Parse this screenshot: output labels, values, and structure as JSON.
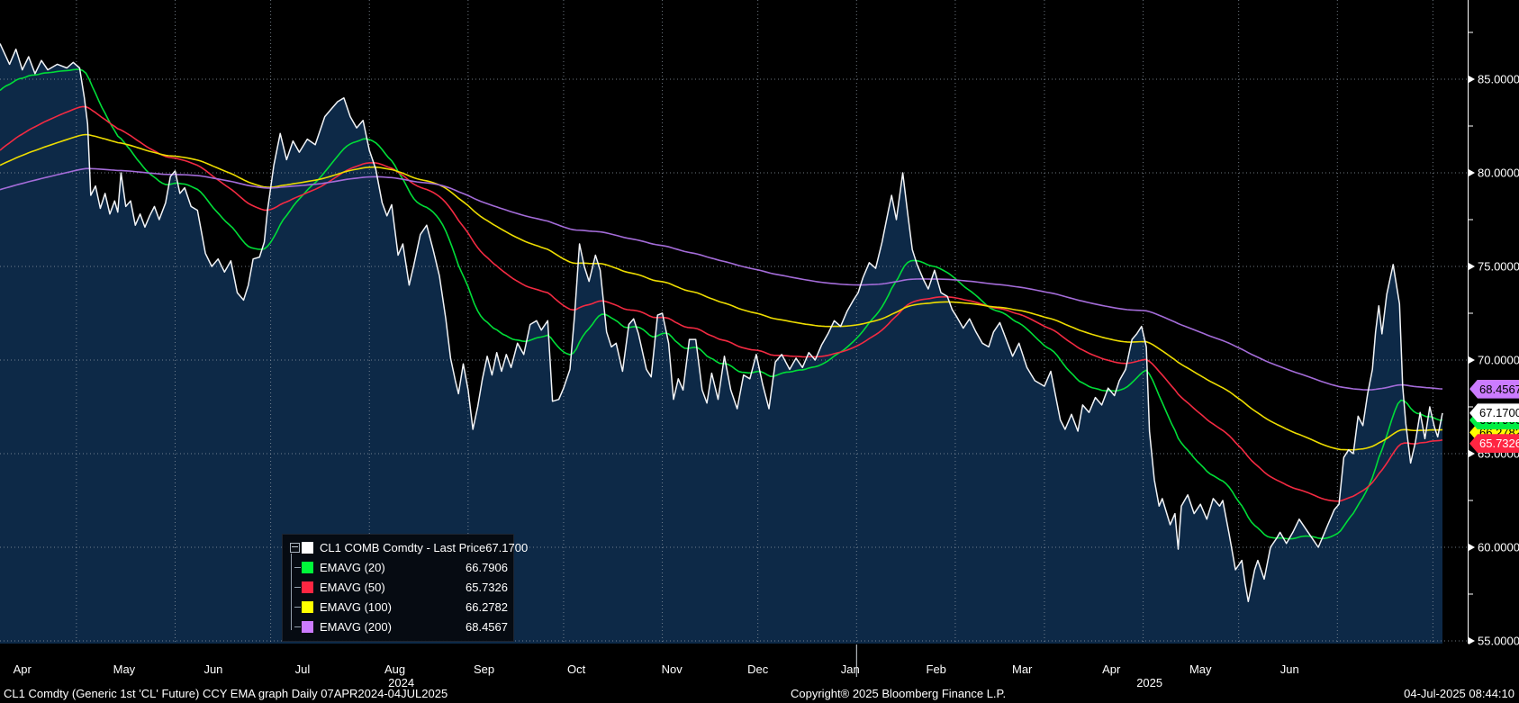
{
  "chart_data": {
    "type": "line",
    "title": "CL1 Comdty (Generic 1st 'CL' Future) CCY EMA graph Daily 07APR2024-04JUL2025",
    "x_start_label": "07APR2024",
    "x_end_label": "04JUL2025",
    "x_range_days": 453,
    "ylim": [
      54.85,
      89.2
    ],
    "y_ticks_major": [
      85,
      80,
      75,
      70,
      65,
      60,
      55
    ],
    "y_ticks_minor": [
      87.5,
      82.5,
      77.5,
      72.5,
      67.5,
      62.5,
      57.5
    ],
    "grid": true,
    "legend_position": "bottom-left",
    "month_boundaries_days": [
      24,
      55,
      85,
      116,
      147,
      177,
      208,
      238,
      269,
      300,
      328,
      359,
      389,
      420,
      450
    ],
    "months": [
      {
        "label": "Apr",
        "day": 7
      },
      {
        "label": "May",
        "day": 39
      },
      {
        "label": "Jun",
        "day": 67
      },
      {
        "label": "Jul",
        "day": 95
      },
      {
        "label": "Aug",
        "day": 124
      },
      {
        "label": "Sep",
        "day": 152
      },
      {
        "label": "Oct",
        "day": 181
      },
      {
        "label": "Nov",
        "day": 211
      },
      {
        "label": "Dec",
        "day": 238
      },
      {
        "label": "Jan",
        "day": 267
      },
      {
        "label": "Feb",
        "day": 294
      },
      {
        "label": "Mar",
        "day": 321
      },
      {
        "label": "Apr",
        "day": 349
      },
      {
        "label": "May",
        "day": 377
      },
      {
        "label": "Jun",
        "day": 405
      }
    ],
    "years": [
      {
        "label": "2024",
        "day": 126
      },
      {
        "label": "2025",
        "day": 361
      }
    ],
    "year_boundary_day": 269,
    "price_series": {
      "name": "CL1 COMB Comdty - Last Price",
      "color": "#f2f4f7",
      "fill": "#0d2947",
      "last_value": 67.17,
      "points": [
        [
          0,
          86.9
        ],
        [
          3,
          85.8
        ],
        [
          5,
          86.6
        ],
        [
          7,
          85.5
        ],
        [
          9,
          86.2
        ],
        [
          11,
          85.3
        ],
        [
          13,
          86.0
        ],
        [
          15,
          85.5
        ],
        [
          18,
          85.8
        ],
        [
          21,
          85.6
        ],
        [
          23,
          85.9
        ],
        [
          25,
          85.6
        ],
        [
          26.5,
          84.0
        ],
        [
          27.5,
          82.6
        ],
        [
          28.5,
          78.8
        ],
        [
          30,
          79.3
        ],
        [
          31.5,
          78.1
        ],
        [
          33,
          78.9
        ],
        [
          34.5,
          77.8
        ],
        [
          36,
          78.5
        ],
        [
          37,
          77.9
        ],
        [
          38,
          80.0
        ],
        [
          39.5,
          78.2
        ],
        [
          41,
          78.5
        ],
        [
          42.5,
          77.2
        ],
        [
          44,
          77.8
        ],
        [
          45.5,
          77.1
        ],
        [
          47,
          77.7
        ],
        [
          48.5,
          78.2
        ],
        [
          50,
          77.5
        ],
        [
          52,
          78.4
        ],
        [
          53.5,
          79.8
        ],
        [
          55,
          80.1
        ],
        [
          56.5,
          78.9
        ],
        [
          58,
          79.2
        ],
        [
          60,
          78.2
        ],
        [
          62,
          78.0
        ],
        [
          64.5,
          75.7
        ],
        [
          66.5,
          75.0
        ],
        [
          68.5,
          75.4
        ],
        [
          70.5,
          74.7
        ],
        [
          72.5,
          75.3
        ],
        [
          74.5,
          73.6
        ],
        [
          76.5,
          73.2
        ],
        [
          78,
          74.0
        ],
        [
          79.5,
          75.4
        ],
        [
          81.5,
          75.5
        ],
        [
          83,
          76.3
        ],
        [
          84,
          78.0
        ],
        [
          86,
          80.4
        ],
        [
          88,
          82.1
        ],
        [
          90,
          80.7
        ],
        [
          92,
          81.7
        ],
        [
          94,
          81.1
        ],
        [
          96.5,
          81.8
        ],
        [
          99,
          81.5
        ],
        [
          102,
          83.0
        ],
        [
          104,
          83.4
        ],
        [
          106,
          83.8
        ],
        [
          108,
          84.0
        ],
        [
          110,
          83.0
        ],
        [
          112,
          82.4
        ],
        [
          114,
          82.8
        ],
        [
          116,
          81.2
        ],
        [
          118,
          80.2
        ],
        [
          120,
          78.4
        ],
        [
          121.5,
          77.7
        ],
        [
          123,
          78.3
        ],
        [
          125,
          75.6
        ],
        [
          126.5,
          76.2
        ],
        [
          128.5,
          74.0
        ],
        [
          130,
          75.1
        ],
        [
          132,
          76.7
        ],
        [
          134,
          77.2
        ],
        [
          136,
          75.9
        ],
        [
          138,
          74.5
        ],
        [
          140,
          72.2
        ],
        [
          141.5,
          70.1
        ],
        [
          143,
          68.9
        ],
        [
          144,
          68.2
        ],
        [
          145.5,
          69.8
        ],
        [
          147,
          68.4
        ],
        [
          148.5,
          66.3
        ],
        [
          150,
          67.5
        ],
        [
          151.5,
          69.0
        ],
        [
          153,
          70.2
        ],
        [
          154.5,
          69.2
        ],
        [
          156,
          70.4
        ],
        [
          157.5,
          69.4
        ],
        [
          159,
          70.3
        ],
        [
          160.5,
          69.6
        ],
        [
          162.5,
          70.9
        ],
        [
          164.5,
          70.3
        ],
        [
          166.5,
          71.9
        ],
        [
          168.5,
          72.1
        ],
        [
          170,
          71.6
        ],
        [
          172,
          72.1
        ],
        [
          173.5,
          67.8
        ],
        [
          175.5,
          67.9
        ],
        [
          177,
          68.5
        ],
        [
          179,
          69.5
        ],
        [
          180.5,
          72.5
        ],
        [
          182,
          76.2
        ],
        [
          183.5,
          75.0
        ],
        [
          185,
          74.2
        ],
        [
          187,
          75.6
        ],
        [
          188.5,
          74.8
        ],
        [
          190.5,
          71.5
        ],
        [
          192,
          70.7
        ],
        [
          193.5,
          70.9
        ],
        [
          195.5,
          69.4
        ],
        [
          197.5,
          71.9
        ],
        [
          199,
          72.2
        ],
        [
          200.5,
          71.4
        ],
        [
          203,
          69.5
        ],
        [
          204.5,
          69.1
        ],
        [
          206.5,
          72.4
        ],
        [
          208,
          72.5
        ],
        [
          210,
          70.9
        ],
        [
          211.5,
          67.9
        ],
        [
          213,
          69.0
        ],
        [
          214.5,
          68.4
        ],
        [
          216.5,
          71.1
        ],
        [
          218.5,
          71.1
        ],
        [
          220.5,
          68.4
        ],
        [
          222,
          67.7
        ],
        [
          223.5,
          69.3
        ],
        [
          225.5,
          67.9
        ],
        [
          227.5,
          70.2
        ],
        [
          229.5,
          68.4
        ],
        [
          231.5,
          67.4
        ],
        [
          233.5,
          69.2
        ],
        [
          235.5,
          69.0
        ],
        [
          237.5,
          70.3
        ],
        [
          239.5,
          68.7
        ],
        [
          241.5,
          67.4
        ],
        [
          243.5,
          69.9
        ],
        [
          245.5,
          70.3
        ],
        [
          248,
          69.5
        ],
        [
          250,
          70.1
        ],
        [
          252,
          69.6
        ],
        [
          254,
          70.4
        ],
        [
          256,
          70.0
        ],
        [
          258,
          70.8
        ],
        [
          260,
          71.4
        ],
        [
          262,
          72.1
        ],
        [
          264,
          71.8
        ],
        [
          266,
          72.6
        ],
        [
          268,
          73.2
        ],
        [
          269.5,
          73.6
        ],
        [
          271,
          74.4
        ],
        [
          273,
          75.2
        ],
        [
          275,
          74.9
        ],
        [
          277,
          76.3
        ],
        [
          279,
          78.0
        ],
        [
          280,
          78.8
        ],
        [
          281.5,
          77.5
        ],
        [
          283.5,
          80.0
        ],
        [
          285,
          77.9
        ],
        [
          286.5,
          75.9
        ],
        [
          288,
          75.1
        ],
        [
          290,
          74.3
        ],
        [
          291.5,
          73.8
        ],
        [
          293.5,
          74.8
        ],
        [
          295.5,
          73.6
        ],
        [
          297.5,
          73.4
        ],
        [
          299,
          72.7
        ],
        [
          300.5,
          72.3
        ],
        [
          302.5,
          71.7
        ],
        [
          304.5,
          72.2
        ],
        [
          306.5,
          71.5
        ],
        [
          308.5,
          70.9
        ],
        [
          310.5,
          70.7
        ],
        [
          312,
          71.5
        ],
        [
          314,
          72.0
        ],
        [
          316,
          71.1
        ],
        [
          318,
          70.2
        ],
        [
          320,
          70.9
        ],
        [
          322.5,
          69.6
        ],
        [
          325,
          68.9
        ],
        [
          328,
          68.6
        ],
        [
          330,
          69.4
        ],
        [
          333,
          66.8
        ],
        [
          334.5,
          66.3
        ],
        [
          336.5,
          67.1
        ],
        [
          338.5,
          66.2
        ],
        [
          340,
          67.6
        ],
        [
          342,
          67.2
        ],
        [
          344,
          68.0
        ],
        [
          346,
          67.6
        ],
        [
          348,
          68.5
        ],
        [
          350,
          68.1
        ],
        [
          351.5,
          68.9
        ],
        [
          353.5,
          69.5
        ],
        [
          355.5,
          71.1
        ],
        [
          357,
          71.4
        ],
        [
          358.5,
          71.8
        ],
        [
          360,
          70.7
        ],
        [
          361,
          66.2
        ],
        [
          362.5,
          63.6
        ],
        [
          364,
          62.2
        ],
        [
          365,
          62.6
        ],
        [
          367.5,
          61.2
        ],
        [
          369,
          61.8
        ],
        [
          370,
          59.9
        ],
        [
          371,
          62.2
        ],
        [
          373,
          62.8
        ],
        [
          375,
          61.8
        ],
        [
          377,
          62.3
        ],
        [
          379,
          61.5
        ],
        [
          381,
          62.6
        ],
        [
          383,
          62.2
        ],
        [
          384,
          62.5
        ],
        [
          386,
          60.7
        ],
        [
          388,
          58.8
        ],
        [
          390,
          59.3
        ],
        [
          391,
          58.1
        ],
        [
          392,
          57.1
        ],
        [
          394,
          58.8
        ],
        [
          395,
          59.3
        ],
        [
          397,
          58.3
        ],
        [
          399,
          60.0
        ],
        [
          401,
          60.5
        ],
        [
          402,
          60.8
        ],
        [
          404,
          60.2
        ],
        [
          406,
          60.8
        ],
        [
          408,
          61.5
        ],
        [
          410,
          61.0
        ],
        [
          412,
          60.5
        ],
        [
          414,
          60.0
        ],
        [
          416,
          60.8
        ],
        [
          417,
          61.2
        ],
        [
          419,
          62.0
        ],
        [
          420.5,
          62.3
        ],
        [
          422,
          64.8
        ],
        [
          423.5,
          65.2
        ],
        [
          425,
          65.0
        ],
        [
          426.5,
          67.0
        ],
        [
          428,
          66.5
        ],
        [
          429.5,
          68.2
        ],
        [
          431,
          69.5
        ],
        [
          432,
          71.5
        ],
        [
          433,
          72.9
        ],
        [
          434,
          71.4
        ],
        [
          435.5,
          73.5
        ],
        [
          437.5,
          75.1
        ],
        [
          439.5,
          73.0
        ],
        [
          440.5,
          68.6
        ],
        [
          441.5,
          66.6
        ],
        [
          443,
          64.5
        ],
        [
          444.5,
          65.6
        ],
        [
          446,
          67.2
        ],
        [
          447.5,
          65.8
        ],
        [
          449,
          67.5
        ],
        [
          450.5,
          66.4
        ],
        [
          451.5,
          65.9
        ],
        [
          453,
          67.17
        ]
      ]
    },
    "ema_series": [
      {
        "name": "EMAVG (20)",
        "period": 20,
        "color": "#00dd38",
        "start": 84.4,
        "end": 66.7906
      },
      {
        "name": "EMAVG (50)",
        "period": 50,
        "color": "#f32a42",
        "start": 81.2,
        "end": 65.7326
      },
      {
        "name": "EMAVG (100)",
        "period": 100,
        "color": "#eddc00",
        "start": 80.4,
        "end": 66.2782
      },
      {
        "name": "EMAVG (200)",
        "period": 200,
        "color": "#a46cd9",
        "start": 79.1,
        "end": 68.4567
      }
    ]
  },
  "legend": {
    "rows": [
      {
        "label": "CL1 COMB Comdty - Last Price",
        "value": "67.1700",
        "swatch": "#ffffff"
      },
      {
        "label": "EMAVG (20)",
        "value": "66.7906",
        "swatch": "#00f83a"
      },
      {
        "label": "EMAVG (50)",
        "value": "65.7326",
        "swatch": "#ff2642"
      },
      {
        "label": "EMAVG (100)",
        "value": "66.2782",
        "swatch": "#ffff00"
      },
      {
        "label": "EMAVG (200)",
        "value": "68.4567",
        "swatch": "#cb7bff"
      }
    ]
  },
  "price_tags": [
    {
      "text": "68.4567",
      "price": 68.4567,
      "bg": "#cb7bff",
      "fg": "#000000",
      "z": 5,
      "dy": 0
    },
    {
      "text": "67.1700",
      "price": 67.17,
      "bg": "#ffffff",
      "fg": "#000000",
      "z": 5,
      "dy": 0
    },
    {
      "text": "66.7906",
      "price": 66.7906,
      "bg": "#00ee44",
      "fg": "#000000",
      "z": 4,
      "dy": 0
    },
    {
      "text": "66.2782",
      "price": 66.2782,
      "bg": "#ffff00",
      "fg": "#000000",
      "z": 3,
      "dy": 3
    },
    {
      "text": "65.7326",
      "price": 65.7326,
      "bg": "#ff2642",
      "fg": "#ffffff",
      "z": 4,
      "dy": 4
    }
  ],
  "footer": {
    "left": "CL1 Comdty (Generic 1st 'CL' Future) CCY EMA graph  Daily 07APR2024-04JUL2025",
    "center": "Copyright® 2025 Bloomberg Finance L.P.",
    "right": "04-Jul-2025 08:44:10"
  }
}
